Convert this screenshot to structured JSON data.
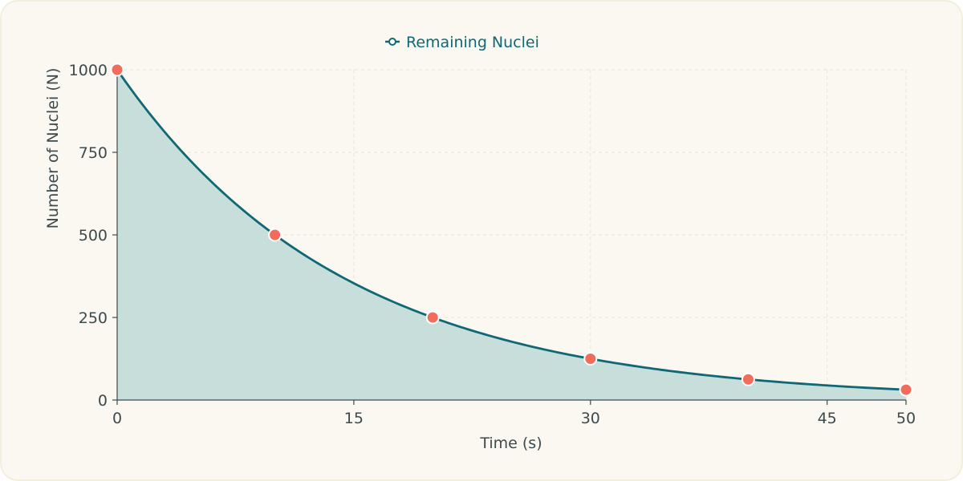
{
  "chart_data": {
    "type": "area",
    "series": [
      {
        "name": "Remaining Nuclei",
        "x": [
          0,
          10,
          20,
          30,
          40,
          50
        ],
        "values": [
          1000,
          500,
          250,
          125,
          62.5,
          31.25
        ]
      }
    ],
    "xlabel": "Time (s)",
    "ylabel": "Number of Nuclei (N)",
    "xlim": [
      0,
      50
    ],
    "ylim": [
      0,
      1000
    ],
    "x_ticks": [
      "0",
      "15",
      "30",
      "45",
      "50"
    ],
    "y_ticks": [
      "0",
      "250",
      "500",
      "750",
      "1000"
    ],
    "grid": true,
    "legend_position": "top-center",
    "colors": {
      "line": "#0f6874",
      "fill": "#c7dedb",
      "marker": "#f26c5c",
      "marker_stroke": "#ffffff",
      "background": "#faf8f1",
      "grid": "#e8e4d6",
      "axis": "#3d4a4d"
    }
  }
}
